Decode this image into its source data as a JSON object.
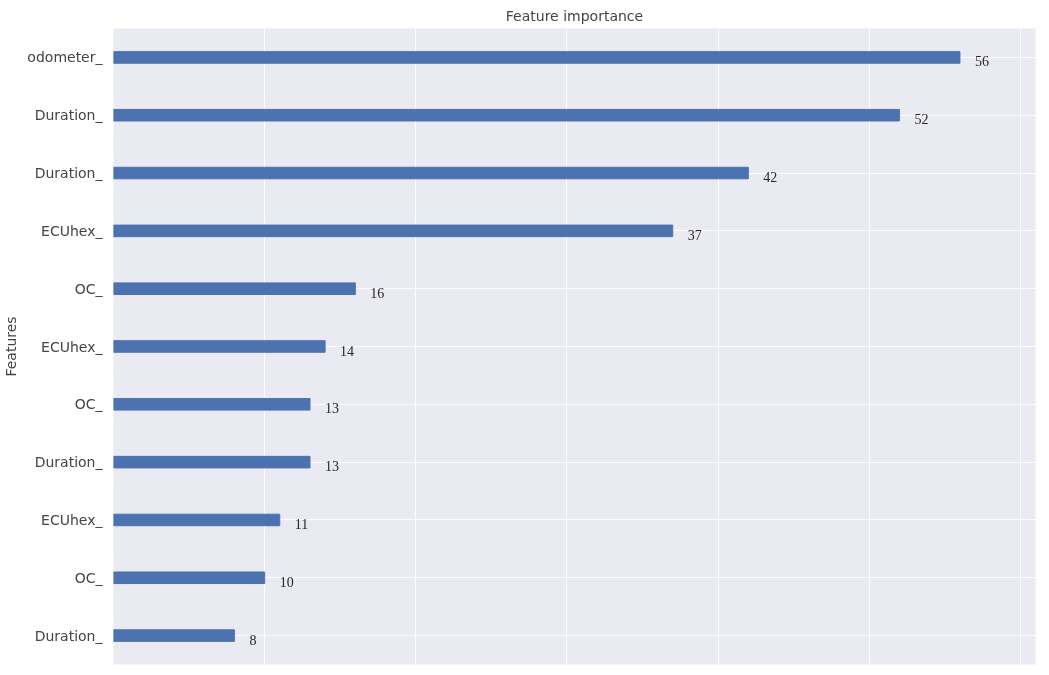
{
  "chart_data": {
    "type": "bar",
    "orientation": "horizontal",
    "title": "Feature importance",
    "ylabel": "Features",
    "categories": [
      "odometer_",
      "Duration_",
      "Duration_",
      "ECUhex_",
      "OC_",
      "ECUhex_",
      "OC_",
      "Duration_",
      "ECUhex_",
      "OC_",
      "Duration_"
    ],
    "values": [
      56,
      52,
      42,
      37,
      16,
      14,
      13,
      13,
      11,
      10,
      8
    ],
    "color": "#4c72b0",
    "data_labels": true,
    "grid": true,
    "tick_labels": "y",
    "xlim": [
      0,
      61
    ],
    "xticks": [
      {
        "value": 0,
        "label": null
      },
      {
        "value": 10,
        "label": null
      },
      {
        "value": 20,
        "label": null
      },
      {
        "value": 30,
        "label": null
      },
      {
        "value": 40,
        "label": null
      },
      {
        "value": 50,
        "label": null
      },
      {
        "value": 60,
        "label": null
      }
    ]
  }
}
